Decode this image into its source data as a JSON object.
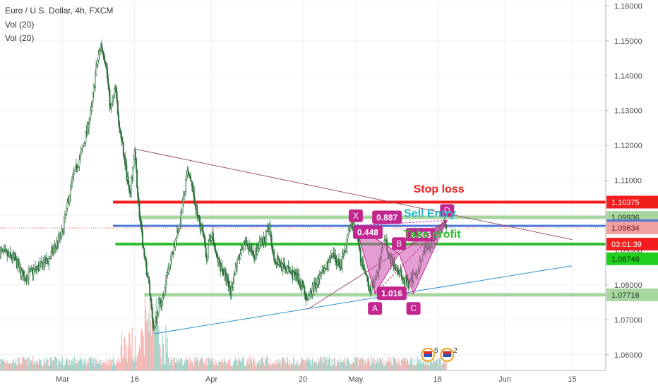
{
  "legend": {
    "title": "Euro / U.S. Dollar, 4h, FXCM",
    "vol1": "Vol (20)",
    "vol2": "Vol (20)"
  },
  "colors": {
    "stop": "#f21d1d",
    "sell": "#26b8c9",
    "take": "#2dbd2d",
    "entry_line": "#4b76d6",
    "green_band": "#a8d6a0",
    "pattern": "#c2268f",
    "pattern_fill": "#cf4fb0",
    "up": "#26a69a",
    "down": "#ef5350",
    "candle": "#2a6f3a"
  },
  "chart_data": {
    "type": "candlestick",
    "symbol": "Euro / U.S. Dollar, 4h, FXCM",
    "ylim": [
      1.0555,
      1.1617
    ],
    "y_ticks": [
      "1.16000",
      "1.15000",
      "1.14000",
      "1.13000",
      "1.12000",
      "1.11000",
      "1.10000",
      "1.09000",
      "1.08000",
      "1.07000",
      "1.06000"
    ],
    "y_tick_values": [
      1.16,
      1.15,
      1.14,
      1.13,
      1.12,
      1.11,
      1.1,
      1.09,
      1.08,
      1.07,
      1.06
    ],
    "x_ticks": [
      {
        "label": "Mar",
        "day": 0
      },
      {
        "label": "16",
        "day": 15
      },
      {
        "label": "Apr",
        "day": 31
      },
      {
        "label": "20",
        "day": 50
      },
      {
        "label": "May",
        "day": 61
      },
      {
        "label": "18",
        "day": 78
      },
      {
        "label": "Jun",
        "day": 92
      },
      {
        "label": "15",
        "day": 106
      }
    ],
    "x_range_days": [
      -13,
      113
    ],
    "price_path": [
      [
        -13,
        1.0895
      ],
      [
        -10,
        1.0875
      ],
      [
        -8,
        1.082
      ],
      [
        -6,
        1.084
      ],
      [
        -3,
        1.087
      ],
      [
        0,
        1.095
      ],
      [
        2,
        1.11
      ],
      [
        4,
        1.118
      ],
      [
        6,
        1.13
      ],
      [
        7,
        1.142
      ],
      [
        8,
        1.149
      ],
      [
        9,
        1.144
      ],
      [
        10,
        1.13
      ],
      [
        11,
        1.136
      ],
      [
        12,
        1.124
      ],
      [
        13,
        1.115
      ],
      [
        14,
        1.105
      ],
      [
        15,
        1.118
      ],
      [
        16,
        1.1
      ],
      [
        17,
        1.088
      ],
      [
        18,
        1.08
      ],
      [
        19,
        1.067
      ],
      [
        20,
        1.074
      ],
      [
        21,
        1.076
      ],
      [
        22,
        1.085
      ],
      [
        24,
        1.095
      ],
      [
        25,
        1.103
      ],
      [
        26,
        1.112
      ],
      [
        27,
        1.108
      ],
      [
        28,
        1.1
      ],
      [
        29,
        1.096
      ],
      [
        30,
        1.088
      ],
      [
        31,
        1.095
      ],
      [
        32,
        1.088
      ],
      [
        34,
        1.082
      ],
      [
        35,
        1.078
      ],
      [
        36,
        1.085
      ],
      [
        38,
        1.092
      ],
      [
        40,
        1.089
      ],
      [
        42,
        1.093
      ],
      [
        43,
        1.096
      ],
      [
        44,
        1.088
      ],
      [
        46,
        1.085
      ],
      [
        48,
        1.083
      ],
      [
        50,
        1.08
      ],
      [
        51,
        1.075
      ],
      [
        52,
        1.079
      ],
      [
        54,
        1.083
      ],
      [
        56,
        1.088
      ],
      [
        58,
        1.086
      ],
      [
        59,
        1.092
      ],
      [
        60,
        1.0975
      ],
      [
        61,
        1.096
      ],
      [
        62,
        1.088
      ],
      [
        63,
        1.082
      ],
      [
        64,
        1.079
      ],
      [
        65,
        1.081
      ],
      [
        66,
        1.086
      ],
      [
        67,
        1.094
      ],
      [
        68,
        1.088
      ],
      [
        70,
        1.084
      ],
      [
        71,
        1.081
      ],
      [
        72,
        1.08
      ],
      [
        74,
        1.085
      ],
      [
        75,
        1.089
      ],
      [
        77,
        1.092
      ],
      [
        78,
        1.096
      ],
      [
        79,
        1.097
      ],
      [
        80,
        1.0969
      ]
    ],
    "levels": [
      {
        "name": "Stop loss",
        "price": 1.10375,
        "tag": "1.10375",
        "color_key": "stop",
        "x_from_day": 10.5
      },
      {
        "name": "Sell Entry",
        "price": 1.09936,
        "tag": "1.09936",
        "color_key": "green_band",
        "x_from_day": 16
      },
      {
        "name": "current",
        "price": 1.09694,
        "tag": "1.09694",
        "color_key": "entry_line",
        "x_from_day": 10.5
      },
      {
        "name": "",
        "price": 1.09634,
        "tag": "1.09634",
        "color_key": "none"
      },
      {
        "name": "timer",
        "price": 1.0917,
        "tag": "03:01:39",
        "color_key": "stop"
      },
      {
        "name": "Take profit",
        "price": 1.0917,
        "tag": "",
        "color_key": "take",
        "x_from_day": 11
      },
      {
        "name": "",
        "price": 1.08749,
        "tag": "1.08749",
        "color_key": "take"
      },
      {
        "name": "",
        "price": 1.07716,
        "tag": "1.07716",
        "color_key": "green_band",
        "x_from_day": 17
      }
    ],
    "annotations": [
      {
        "text": "Stop loss",
        "day": 73,
        "price": 1.1065,
        "color_key": "stop"
      },
      {
        "text": "Sell Entry",
        "day": 71,
        "price": 1.0995,
        "color_key": "sell"
      },
      {
        "text": "Take profit",
        "day": 71,
        "price": 1.0935,
        "color_key": "take"
      }
    ],
    "harmonic": {
      "points": [
        {
          "label": "X",
          "day": 61,
          "price": 1.097
        },
        {
          "label": "A",
          "day": 65,
          "price": 1.0775
        },
        {
          "label": "B",
          "day": 70,
          "price": 1.089
        },
        {
          "label": "C",
          "day": 73,
          "price": 1.0775
        },
        {
          "label": "D",
          "day": 80,
          "price": 1.0985
        }
      ],
      "ratios": [
        {
          "text": "0.887",
          "day": 67.5,
          "price": 1.0993
        },
        {
          "text": "0.448",
          "day": 63.5,
          "price": 1.095
        },
        {
          "text": "1.965",
          "day": 74.5,
          "price": 1.0943
        },
        {
          "text": "1.016",
          "day": 68.5,
          "price": 1.0775
        }
      ]
    },
    "trendlines": [
      {
        "from": [
          15,
          1.119
        ],
        "to": [
          106,
          1.093
        ],
        "color": "#a05070"
      },
      {
        "from": [
          19,
          1.066
        ],
        "to": [
          106,
          1.0855
        ],
        "color": "#2d8fd0"
      },
      {
        "from": [
          51,
          1.073
        ],
        "to": [
          80,
          1.0985
        ],
        "color": "#a05070"
      }
    ]
  },
  "price_axis": {
    "tags": [
      {
        "text": "1.10375",
        "bg": "#f21d1d",
        "fg": "#ffffff",
        "price": 1.10375
      },
      {
        "text": "1.09936",
        "bg": "#a8d6a0",
        "fg": "#1e3a1e",
        "price": 1.09936
      },
      {
        "text": "1.09694",
        "bg": "#4b76d6",
        "fg": "#ffffff",
        "price": 1.09694
      },
      {
        "text": "1.09634",
        "bg": "#f0a0a0",
        "fg": "#7a1010",
        "price": 1.09634
      },
      {
        "text": "03:01:39",
        "bg": "#f21d1d",
        "fg": "#ffffff",
        "price": 1.0917
      },
      {
        "text": "1.08749",
        "bg": "#1fd01f",
        "fg": "#0a2a0a",
        "price": 1.08749
      },
      {
        "text": "1.07716",
        "bg": "#a8d6a0",
        "fg": "#1e3a1e",
        "price": 1.07716
      }
    ]
  },
  "events": [
    {
      "count": "5",
      "day": 76
    },
    {
      "count": "2",
      "day": 80
    }
  ]
}
